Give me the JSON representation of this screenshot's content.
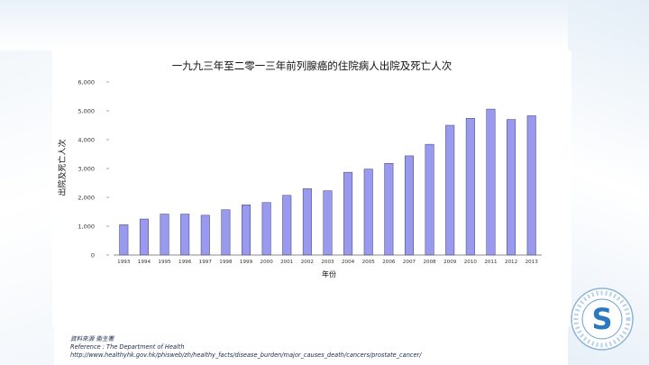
{
  "chart_data": {
    "type": "bar",
    "title": "一九九三年至二零一三年前列腺癌的住院病人出院及死亡人次",
    "xlabel": "年份",
    "ylabel": "出院及死亡人次",
    "ylim": [
      0,
      6000
    ],
    "yticks": [
      "0",
      "1,000",
      "2,000",
      "3,000",
      "4,000",
      "5,000",
      "6,000"
    ],
    "categories": [
      "1993",
      "1994",
      "1995",
      "1996",
      "1997",
      "1998",
      "1999",
      "2000",
      "2001",
      "2002",
      "2003",
      "2004",
      "2005",
      "2006",
      "2007",
      "2008",
      "2009",
      "2010",
      "2011",
      "2012",
      "2013"
    ],
    "values": [
      1050,
      1250,
      1420,
      1420,
      1380,
      1570,
      1740,
      1820,
      2070,
      2300,
      2230,
      2870,
      2980,
      3180,
      3440,
      3840,
      4500,
      4740,
      5060,
      4700,
      4830
    ],
    "bar_color": "#9999ee",
    "bar_stroke": "#3a3a7a",
    "grid": false,
    "legend": "none"
  },
  "source": {
    "line1": "資料來源 衞生署",
    "line2": "Reference : The Department of Health",
    "line3": "http://www.healthyhk.gov.hk/phisweb/zh/healthy_facts/disease_burden/major_causes_death/cancers/prostate_cancer/"
  },
  "logo": {
    "letter": "S",
    "icon": "organization-seal-logo"
  }
}
